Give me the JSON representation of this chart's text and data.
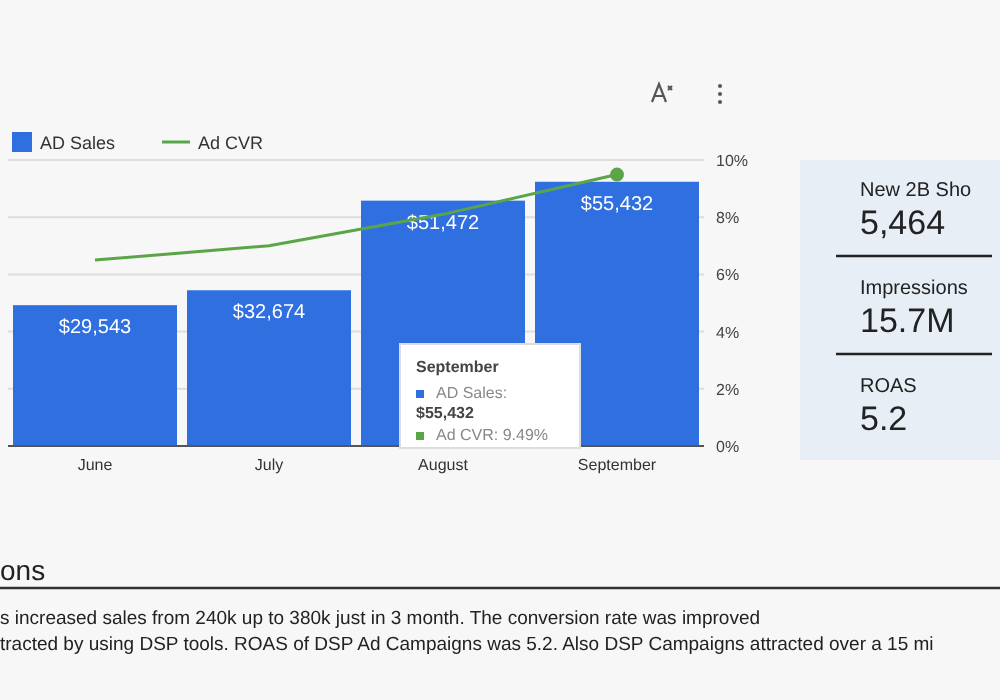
{
  "chart_data": [
    {
      "type": "bar",
      "categories": [
        "June",
        "July",
        "August",
        "September"
      ],
      "ylim": [
        0,
        60000
      ],
      "y2lim": [
        0,
        10
      ],
      "y2ticks": [
        {
          "value": 0,
          "label": "0%"
        },
        {
          "value": 2,
          "label": "2%"
        },
        {
          "value": 4,
          "label": "4%"
        },
        {
          "value": 6,
          "label": "6%"
        },
        {
          "value": 8,
          "label": "8%"
        },
        {
          "value": 10,
          "label": "10%"
        }
      ],
      "grid": "y",
      "legend": "top left",
      "data_labels": false,
      "series": [
        {
          "name": "AD Sales",
          "type": "bar",
          "color": "#2f6fe0",
          "values": [
            29543,
            32674,
            51472,
            55432
          ],
          "value_labels": [
            "$29,543",
            "$32,674",
            "$51,472",
            "$55,432"
          ]
        },
        {
          "name": "Ad CVR",
          "type": "line",
          "axis": "y2",
          "color": "#5aa548",
          "values": [
            6.5,
            7.0,
            8.1,
            9.49
          ]
        }
      ],
      "annotations": [
        "September",
        "AD Sales:",
        "$55,432",
        "Ad CVR: 9.49%"
      ]
    },
    {
      "type": "other",
      "categories": [
        "New 2B Sho",
        "Impressions",
        "ROAS"
      ],
      "value_labels": [
        "5,464",
        "15.7M",
        "5.2"
      ]
    },
    {
      "type": "other",
      "title": "ons",
      "annotations": [
        "s increased sales from 240k up to 380k just in 3 month. The conversion rate was improved",
        "tracted by using DSP tools. ROAS of DSP Ad Campaigns was 5.2. Also DSP Campaigns attracted over a 15 mi"
      ]
    }
  ]
}
